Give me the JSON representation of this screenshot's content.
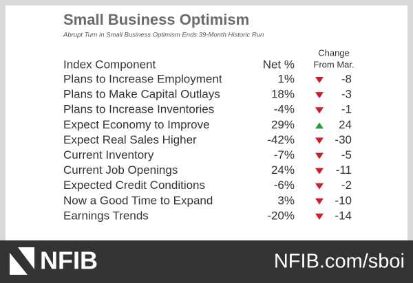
{
  "header": {
    "title": "Small Business Optimism",
    "subtitle": "Abrupt Turn in Small Business Optimism Ends 39-Month Historic Run"
  },
  "table": {
    "columns": [
      "Index Component",
      "Net %",
      "Change",
      "From Mar."
    ],
    "rows": [
      [
        "Plans to Increase Employment",
        "1%",
        "-8"
      ],
      [
        "Plans to Make Capital Outlays",
        "18%",
        "-3"
      ],
      [
        "Plans to Increase Inventories",
        "-4%",
        "-1"
      ],
      [
        "Expect Economy to Improve",
        "29%",
        "24"
      ],
      [
        "Expect Real Sales Higher",
        "-42%",
        "-30"
      ],
      [
        "Current Inventory",
        "-7%",
        "-5"
      ],
      [
        "Current Job Openings",
        "24%",
        "-11"
      ],
      [
        "Expected Credit Conditions",
        "-6%",
        "-2"
      ],
      [
        "Now a Good Time to Expand",
        "3%",
        "-10"
      ],
      [
        "Earnings Trends",
        "-20%",
        "-14"
      ]
    ]
  },
  "footer": {
    "logo": "NFIB",
    "url": "NFIB.com/sboi"
  }
}
